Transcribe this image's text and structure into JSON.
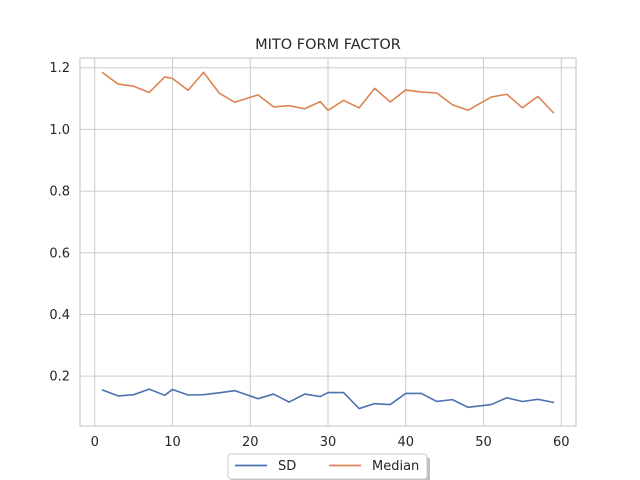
{
  "chart_data": {
    "type": "line",
    "title": "MITO FORM FACTOR",
    "xlabel": "",
    "ylabel": "",
    "xlim": [
      -1.9,
      61.9
    ],
    "ylim": [
      0.0385,
      1.2315
    ],
    "xticks": [
      0,
      10,
      20,
      30,
      40,
      50,
      60
    ],
    "yticks": [
      0.2,
      0.4,
      0.6,
      0.8,
      1.0,
      1.2
    ],
    "ytick_labels": [
      "0.2",
      "0.4",
      "0.6",
      "0.8",
      "1.0",
      "1.2"
    ],
    "grid": true,
    "legend_position": "bottom-center",
    "x": [
      1,
      3,
      5,
      7,
      9,
      10,
      12,
      14,
      16,
      18,
      21,
      23,
      25,
      27,
      29,
      30,
      32,
      34,
      36,
      38,
      40,
      42,
      44,
      46,
      48,
      51,
      53,
      55,
      57,
      59
    ],
    "series": [
      {
        "name": "SD",
        "color": "#4c72b0",
        "values": [
          0.155,
          0.136,
          0.14,
          0.158,
          0.138,
          0.157,
          0.139,
          0.14,
          0.146,
          0.153,
          0.127,
          0.142,
          0.116,
          0.142,
          0.134,
          0.147,
          0.147,
          0.095,
          0.111,
          0.108,
          0.144,
          0.144,
          0.118,
          0.124,
          0.099,
          0.108,
          0.13,
          0.118,
          0.125,
          0.115
        ]
      },
      {
        "name": "Median",
        "color": "#dd8452",
        "values": [
          1.184,
          1.147,
          1.14,
          1.12,
          1.17,
          1.165,
          1.127,
          1.185,
          1.118,
          1.088,
          1.112,
          1.073,
          1.077,
          1.067,
          1.09,
          1.062,
          1.094,
          1.07,
          1.133,
          1.089,
          1.128,
          1.121,
          1.118,
          1.08,
          1.062,
          1.105,
          1.114,
          1.07,
          1.107,
          1.054
        ]
      }
    ]
  }
}
